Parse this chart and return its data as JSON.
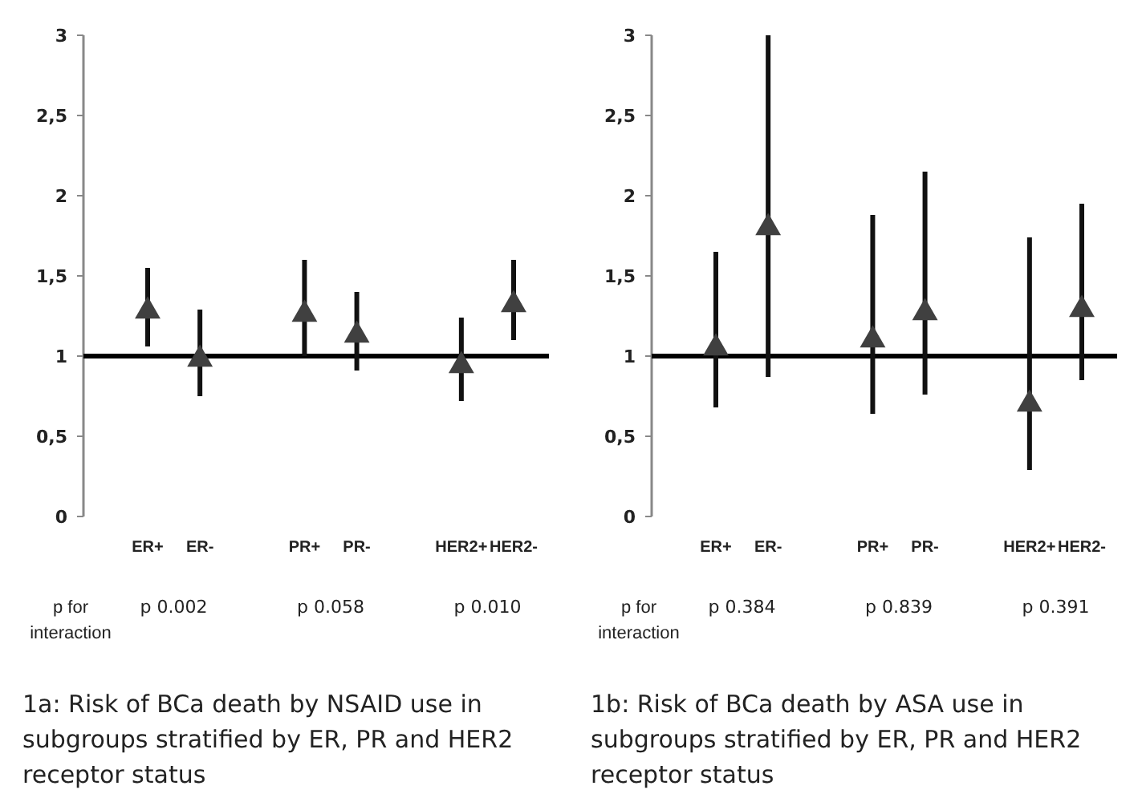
{
  "chart_data": [
    {
      "type": "scatter",
      "title": "1a: Risk of BCa death by NSAID use in subgroups stratified by ER, PR and HER2 receptor status",
      "categories": [
        "ER+",
        "ER-",
        null,
        "PR+",
        "PR-",
        null,
        "HER2+",
        "HER2-"
      ],
      "series": [
        {
          "color": "#404040",
          "values": [
            1.28,
            0.98,
            null,
            1.26,
            1.13,
            null,
            0.94,
            1.32
          ],
          "errors": [
            [
              1.06,
              1.55
            ],
            [
              0.75,
              1.29
            ],
            null,
            [
              1.0,
              1.6
            ],
            [
              0.91,
              1.4
            ],
            null,
            [
              0.72,
              1.24
            ],
            [
              1.1,
              1.6
            ]
          ]
        }
      ],
      "marker": "triangle",
      "ylim": [
        0,
        3
      ],
      "yticks": [
        0,
        {
          "value": 0.5,
          "label": "0,5"
        },
        1,
        {
          "value": 1.5,
          "label": "1,5"
        },
        2,
        {
          "value": 2.5,
          "label": "2,5"
        },
        3
      ],
      "ref_lines": [
        {
          "axis": "y",
          "value": 1,
          "color": "#000000"
        }
      ],
      "annotations": [
        "p for interaction",
        "p 0.002",
        "p 0.058",
        "p 0.010"
      ],
      "grid": false
    },
    {
      "type": "scatter",
      "title": "1b: Risk of BCa death by ASA use in subgroups stratified by ER, PR and HER2 receptor status",
      "categories": [
        "ER+",
        "ER-",
        null,
        "PR+",
        "PR-",
        null,
        "HER2+",
        "HER2-"
      ],
      "series": [
        {
          "color": "#404040",
          "values": [
            1.05,
            1.8,
            null,
            1.1,
            1.27,
            null,
            0.7,
            1.29
          ],
          "errors": [
            [
              0.68,
              1.65
            ],
            [
              0.87,
              3.0
            ],
            null,
            [
              0.64,
              1.88
            ],
            [
              0.76,
              2.15
            ],
            null,
            [
              0.29,
              1.74
            ],
            [
              0.85,
              1.95
            ]
          ]
        }
      ],
      "marker": "triangle",
      "ylim": [
        0,
        3
      ],
      "yticks": [
        0,
        {
          "value": 0.5,
          "label": "0,5"
        },
        1,
        {
          "value": 1.5,
          "label": "1,5"
        },
        2,
        {
          "value": 2.5,
          "label": "2,5"
        },
        3
      ],
      "ref_lines": [
        {
          "axis": "y",
          "value": 1,
          "color": "#000000"
        }
      ],
      "annotations": [
        "p for interaction",
        "p 0.384",
        "p 0.839",
        "p 0.391"
      ],
      "grid": false
    }
  ]
}
